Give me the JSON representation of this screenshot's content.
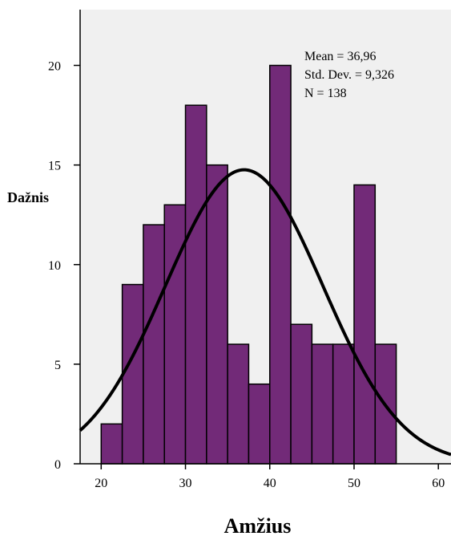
{
  "chart_data": {
    "type": "bar",
    "subtype": "histogram",
    "title": "",
    "xlabel": "Amžius",
    "ylabel": "Dažnis",
    "xlim": [
      17.5,
      61.5
    ],
    "ylim": [
      0,
      22.8
    ],
    "x_ticks": [
      "20",
      "30",
      "40",
      "50",
      "60"
    ],
    "y_ticks": [
      "0",
      "5",
      "10",
      "15",
      "20"
    ],
    "bin_width": 2.5,
    "bins": [
      {
        "start": 20,
        "end": 22.5,
        "count": 2
      },
      {
        "start": 22.5,
        "end": 25,
        "count": 9
      },
      {
        "start": 25,
        "end": 27.5,
        "count": 12
      },
      {
        "start": 27.5,
        "end": 30,
        "count": 13
      },
      {
        "start": 30,
        "end": 32.5,
        "count": 18
      },
      {
        "start": 32.5,
        "end": 35,
        "count": 15
      },
      {
        "start": 35,
        "end": 37.5,
        "count": 6
      },
      {
        "start": 37.5,
        "end": 40,
        "count": 4
      },
      {
        "start": 40,
        "end": 42.5,
        "count": 20
      },
      {
        "start": 42.5,
        "end": 45,
        "count": 7
      },
      {
        "start": 45,
        "end": 47.5,
        "count": 6
      },
      {
        "start": 47.5,
        "end": 50,
        "count": 6
      },
      {
        "start": 50,
        "end": 52.5,
        "count": 14
      },
      {
        "start": 52.5,
        "end": 55,
        "count": 6
      }
    ],
    "normal_curve": {
      "mean": 36.96,
      "std_dev": 9.326,
      "n": 138
    },
    "stats_text": [
      "Mean = 36,96",
      "Std. Dev. = 9,326",
      "N = 138"
    ],
    "bar_color": "#722a78",
    "plot_background": "#f0f0f0",
    "grid": false,
    "stats_placement": "top-right"
  }
}
